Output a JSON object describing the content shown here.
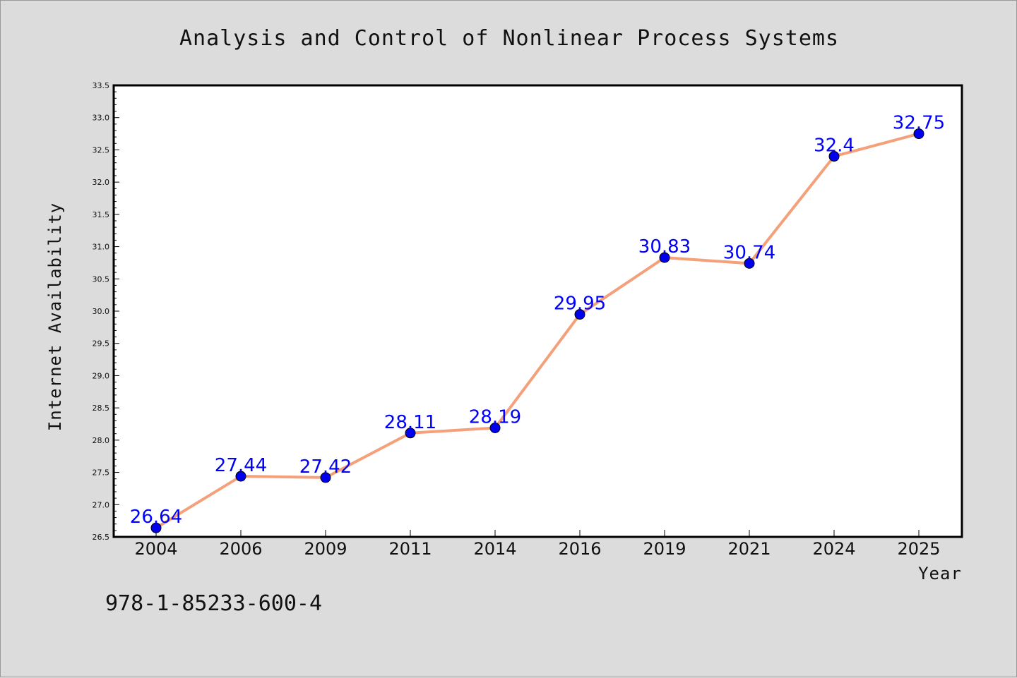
{
  "chart_data": {
    "type": "line",
    "title": "Analysis and Control of Nonlinear Process Systems",
    "xlabel": "Year",
    "ylabel": "Internet Availability",
    "categories": [
      "2004",
      "2006",
      "2009",
      "2011",
      "2014",
      "2016",
      "2019",
      "2021",
      "2024",
      "2025"
    ],
    "series": [
      {
        "values": [
          26.64,
          27.44,
          27.42,
          28.11,
          28.19,
          29.95,
          30.83,
          30.74,
          32.4,
          32.75
        ],
        "labels": [
          "26.64",
          "27.44",
          "27.42",
          "28.11",
          "28.19",
          "29.95",
          "30.83",
          "30.74",
          "32.4",
          "32.75"
        ],
        "line_color": "#f4a07a",
        "marker_color": "#0000ee"
      }
    ],
    "ylim": [
      26.5,
      33.5
    ],
    "yticks": [
      "26.5",
      "27.0",
      "27.5",
      "28.0",
      "28.5",
      "29.0",
      "29.5",
      "30.0",
      "30.5",
      "31.0",
      "31.5",
      "32.0",
      "32.5",
      "33.0",
      "33.5"
    ],
    "grid": false,
    "legend": "none",
    "data_label_color": "#0000ff",
    "background_color": "#dcdcdc",
    "plot_background_color": "#ffffff"
  },
  "footer": {
    "text": "978-1-85233-600-4"
  }
}
